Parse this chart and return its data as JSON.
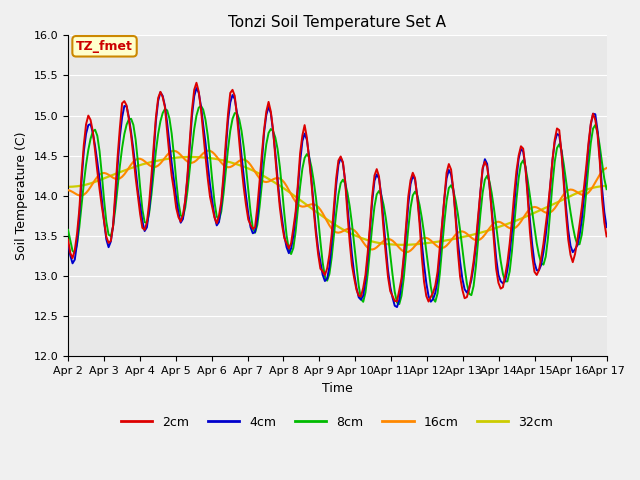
{
  "title": "Tonzi Soil Temperature Set A",
  "xlabel": "Time",
  "ylabel": "Soil Temperature (C)",
  "annotation": "TZ_fmet",
  "ylim": [
    12.0,
    16.0
  ],
  "yticks": [
    12.0,
    12.5,
    13.0,
    13.5,
    14.0,
    14.5,
    15.0,
    15.5,
    16.0
  ],
  "xtick_labels": [
    "Apr 2",
    "Apr 3",
    "Apr 4",
    "Apr 5",
    "Apr 6",
    "Apr 7",
    "Apr 8",
    "Apr 9",
    "Apr 10",
    "Apr 11",
    "Apr 12",
    "Apr 13",
    "Apr 14",
    "Apr 15",
    "Apr 16",
    "Apr 17"
  ],
  "colors": {
    "2cm": "#dd0000",
    "4cm": "#0000cc",
    "8cm": "#00bb00",
    "16cm": "#ff8800",
    "32cm": "#cccc00"
  },
  "bg_color": "#e8e8e8",
  "annotation_bg": "#ffffcc",
  "annotation_border": "#cc8800",
  "annotation_text_color": "#cc0000",
  "title_fontsize": 11,
  "label_fontsize": 9,
  "tick_fontsize": 8,
  "linewidth": 1.4
}
